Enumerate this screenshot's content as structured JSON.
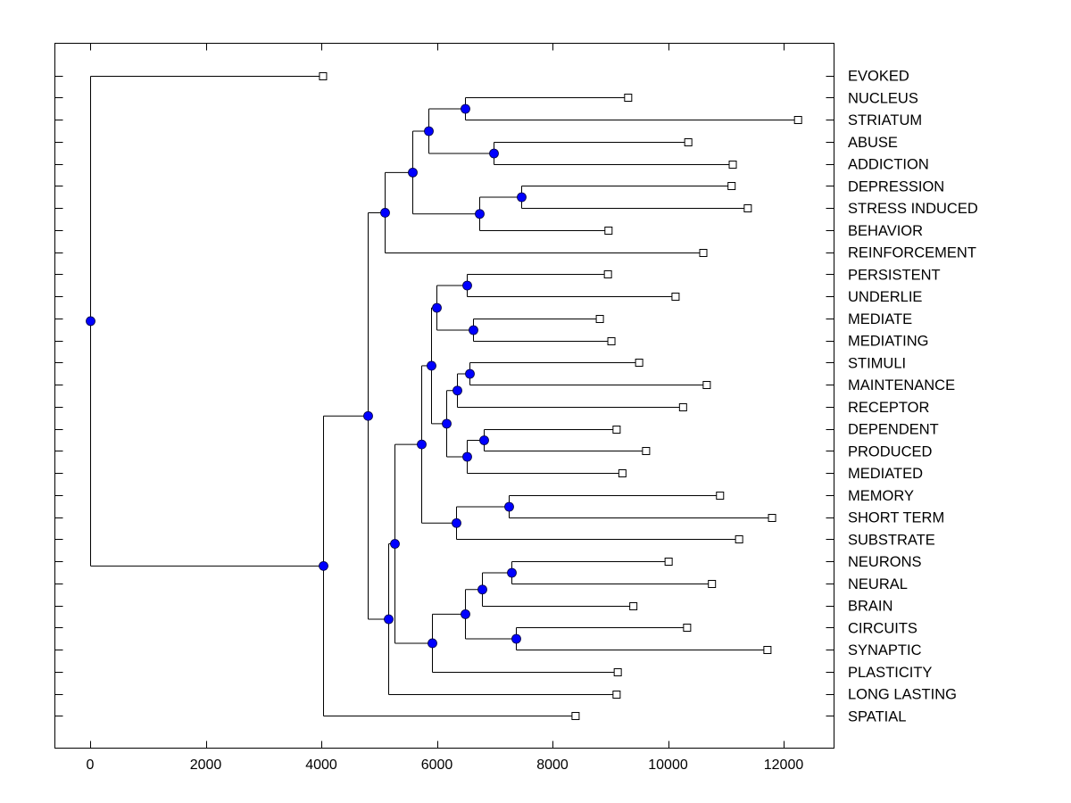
{
  "chart_data": {
    "type": "dendrogram",
    "title": "",
    "xlabel": "",
    "ylabel": "",
    "orientation": "left-to-right",
    "xlim": [
      -600,
      12900
    ],
    "xticks": [
      0,
      2000,
      4000,
      6000,
      8000,
      10000,
      12000
    ],
    "xtick_labels": [
      "0",
      "2000",
      "4000",
      "6000",
      "8000",
      "10000",
      "12000"
    ],
    "grid": false,
    "node_marker_color": "#0000ff",
    "leaf_marker": "open-square",
    "node_marker": "filled-circle",
    "leaves": [
      {
        "label": "EVOKED",
        "value": 4030
      },
      {
        "label": "NUCLEUS",
        "value": 9310
      },
      {
        "label": "STRIATUM",
        "value": 12250
      },
      {
        "label": "ABUSE",
        "value": 10350
      },
      {
        "label": "ADDICTION",
        "value": 11120
      },
      {
        "label": "DEPRESSION",
        "value": 11100
      },
      {
        "label": "STRESS INDUCED",
        "value": 11380
      },
      {
        "label": "BEHAVIOR",
        "value": 8970
      },
      {
        "label": "REINFORCEMENT",
        "value": 10610
      },
      {
        "label": "PERSISTENT",
        "value": 8960
      },
      {
        "label": "UNDERLIE",
        "value": 10130
      },
      {
        "label": "MEDIATE",
        "value": 8820
      },
      {
        "label": "MEDIATING",
        "value": 9020
      },
      {
        "label": "STIMULI",
        "value": 9500
      },
      {
        "label": "MAINTENANCE",
        "value": 10670
      },
      {
        "label": "RECEPTOR",
        "value": 10260
      },
      {
        "label": "DEPENDENT",
        "value": 9110
      },
      {
        "label": "PRODUCED",
        "value": 9620
      },
      {
        "label": "MEDIATED",
        "value": 9210
      },
      {
        "label": "MEMORY",
        "value": 10900
      },
      {
        "label": "SHORT TERM",
        "value": 11800
      },
      {
        "label": "SUBSTRATE",
        "value": 11230
      },
      {
        "label": "NEURONS",
        "value": 10010
      },
      {
        "label": "NEURAL",
        "value": 10760
      },
      {
        "label": "BRAIN",
        "value": 9400
      },
      {
        "label": "CIRCUITS",
        "value": 10330
      },
      {
        "label": "SYNAPTIC",
        "value": 11720
      },
      {
        "label": "PLASTICITY",
        "value": 9130
      },
      {
        "label": "LONG LASTING",
        "value": 9110
      },
      {
        "label": "SPATIAL",
        "value": 8400
      }
    ],
    "tree": {
      "value": 0,
      "children": [
        {
          "leaf": 0
        },
        {
          "value": 4030,
          "children": [
            {
              "value": 4800,
              "children": [
                {
                  "value": 5100,
                  "children": [
                    {
                      "value": 5580,
                      "children": [
                        {
                          "value": 5850,
                          "children": [
                            {
                              "value": 6490,
                              "children": [
                                {
                                  "leaf": 1
                                },
                                {
                                  "leaf": 2
                                }
                              ]
                            },
                            {
                              "value": 6980,
                              "children": [
                                {
                                  "leaf": 3
                                },
                                {
                                  "leaf": 4
                                }
                              ]
                            }
                          ]
                        },
                        {
                          "value": 6730,
                          "children": [
                            {
                              "value": 7460,
                              "children": [
                                {
                                  "leaf": 5
                                },
                                {
                                  "leaf": 6
                                }
                              ]
                            },
                            {
                              "leaf": 7
                            }
                          ]
                        }
                      ]
                    },
                    {
                      "leaf": 8
                    }
                  ]
                },
                {
                  "value": 5160,
                  "children": [
                    {
                      "value": 5270,
                      "children": [
                        {
                          "value": 5730,
                          "children": [
                            {
                              "value": 5900,
                              "children": [
                                {
                                  "value": 5990,
                                  "children": [
                                    {
                                      "value": 6520,
                                      "children": [
                                        {
                                          "leaf": 9
                                        },
                                        {
                                          "leaf": 10
                                        }
                                      ]
                                    },
                                    {
                                      "value": 6630,
                                      "children": [
                                        {
                                          "leaf": 11
                                        },
                                        {
                                          "leaf": 12
                                        }
                                      ]
                                    }
                                  ]
                                },
                                {
                                  "value": 6160,
                                  "children": [
                                    {
                                      "value": 6350,
                                      "children": [
                                        {
                                          "value": 6560,
                                          "children": [
                                            {
                                              "leaf": 13
                                            },
                                            {
                                              "leaf": 14
                                            }
                                          ]
                                        },
                                        {
                                          "leaf": 15
                                        }
                                      ]
                                    },
                                    {
                                      "value": 6520,
                                      "children": [
                                        {
                                          "value": 6810,
                                          "children": [
                                            {
                                              "leaf": 16
                                            },
                                            {
                                              "leaf": 17
                                            }
                                          ]
                                        },
                                        {
                                          "leaf": 18
                                        }
                                      ]
                                    }
                                  ]
                                }
                              ]
                            },
                            {
                              "value": 6330,
                              "children": [
                                {
                                  "value": 7240,
                                  "children": [
                                    {
                                      "leaf": 19
                                    },
                                    {
                                      "leaf": 20
                                    }
                                  ]
                                },
                                {
                                  "leaf": 21
                                }
                              ]
                            }
                          ]
                        },
                        {
                          "value": 5920,
                          "children": [
                            {
                              "value": 6490,
                              "children": [
                                {
                                  "value": 6780,
                                  "children": [
                                    {
                                      "value": 7290,
                                      "children": [
                                        {
                                          "leaf": 22
                                        },
                                        {
                                          "leaf": 23
                                        }
                                      ]
                                    },
                                    {
                                      "leaf": 24
                                    }
                                  ]
                                },
                                {
                                  "value": 7370,
                                  "children": [
                                    {
                                      "leaf": 25
                                    },
                                    {
                                      "leaf": 26
                                    }
                                  ]
                                }
                              ]
                            },
                            {
                              "leaf": 27
                            }
                          ]
                        }
                      ]
                    },
                    {
                      "leaf": 28
                    }
                  ]
                }
              ]
            },
            {
              "leaf": 29
            }
          ]
        }
      ]
    }
  }
}
